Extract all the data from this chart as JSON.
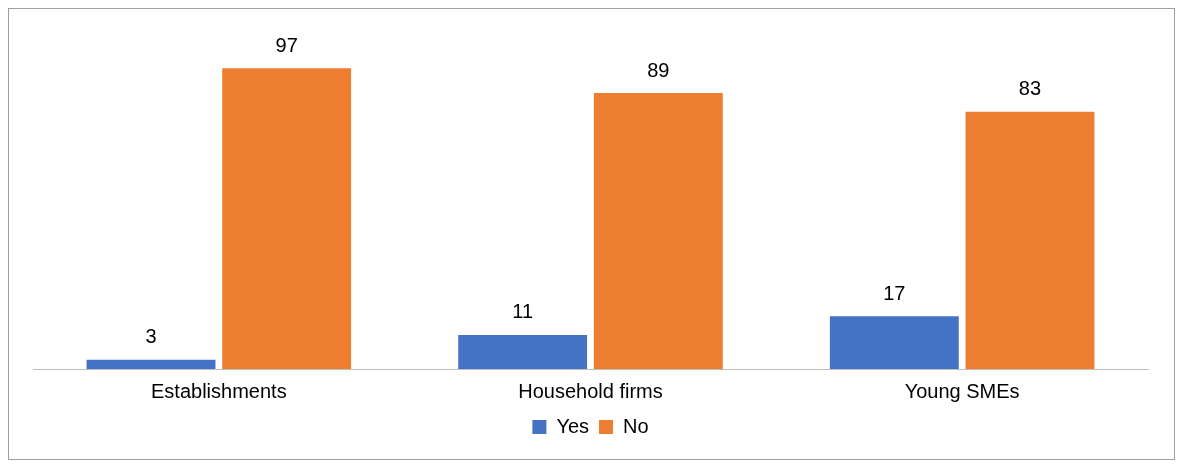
{
  "chart_data": {
    "type": "bar",
    "categories": [
      "Establishments",
      "Household firms",
      "Young SMEs"
    ],
    "series": [
      {
        "name": "Yes",
        "color": "#4472c4",
        "values": [
          3,
          11,
          17
        ]
      },
      {
        "name": "No",
        "color": "#ed7d31",
        "values": [
          97,
          89,
          83
        ]
      }
    ],
    "data_labels": true,
    "legend": "bottom",
    "grid": false
  }
}
